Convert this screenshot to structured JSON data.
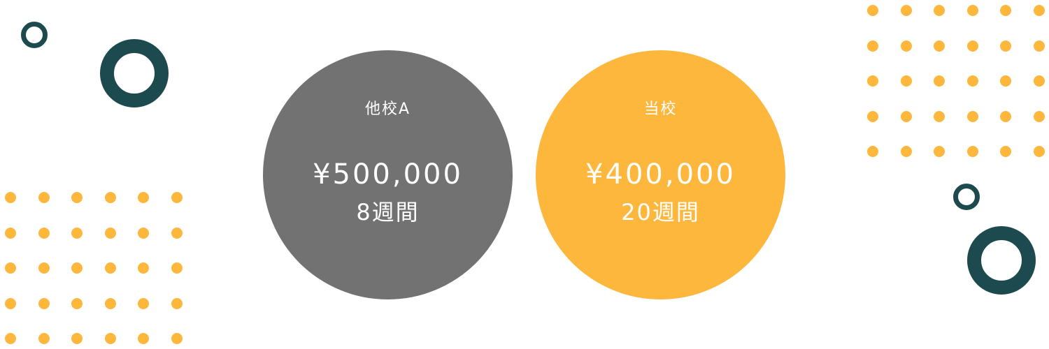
{
  "colors": {
    "dot": "#fdb73c",
    "ring": "#1d4a4e",
    "other_school_circle": "#727272",
    "our_school_circle": "#fdb73c",
    "text_on_circle": "#ffffff"
  },
  "decorations": {
    "dot_icon": "dot-icon",
    "ring_icon": "ring-icon"
  },
  "comparison": {
    "other_school": {
      "name": "他校A",
      "price": "¥500,000",
      "duration": "8週間"
    },
    "our_school": {
      "name": "当校",
      "price": "¥400,000",
      "duration": "20週間"
    }
  }
}
